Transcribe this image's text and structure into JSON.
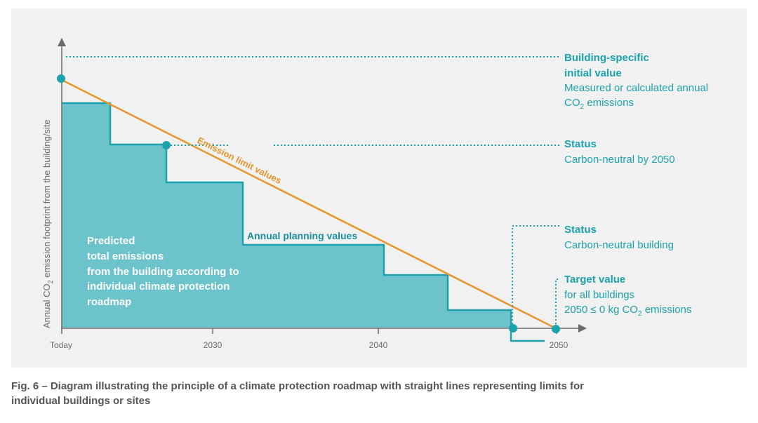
{
  "axes": {
    "y_title": "Annual CO",
    "y_title_sub": "2",
    "y_title_rest": " emission footprint from the building/site",
    "x_ticks": [
      "Today",
      "2030",
      "2040",
      "2050"
    ]
  },
  "annotations": {
    "initial": {
      "title_line1": "Building-specific",
      "title_line2": "initial value",
      "body_line1": "Measured or calculated annual",
      "body_line2_prefix": "CO",
      "body_line2_sub": "2",
      "body_line2_rest": " emissions"
    },
    "status1": {
      "title": "Status",
      "body": "Carbon-neutral by 2050"
    },
    "status2": {
      "title": "Status",
      "body": "Carbon-neutral building"
    },
    "target": {
      "title": "Target value",
      "body_line1": "for all buildings",
      "body_line2_prefix": "2050 ≤ 0 kg CO",
      "body_line2_sub": "2",
      "body_line2_rest": " emissions"
    }
  },
  "lines": {
    "emission_limit_label": "Emission limit values",
    "planning_label": "Annual planning values"
  },
  "area_text": [
    "Predicted",
    "total emissions",
    "from the building according to",
    "individual climate protection",
    "roadmap"
  ],
  "caption": {
    "line1": "Fig. 6 – Diagram illustrating the principle of a climate protection roadmap with straight lines representing limits for",
    "line2": "individual buildings or sites"
  },
  "colors": {
    "teal": "#1ba2ad",
    "teal_fill": "#6cc3cc",
    "orange": "#e6962a",
    "axis": "#6b6b6b"
  }
}
